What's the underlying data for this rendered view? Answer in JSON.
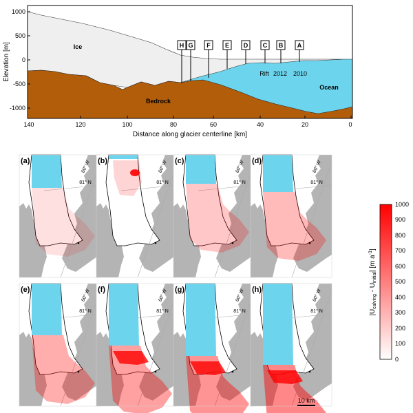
{
  "profile": {
    "y_label": "Elevation [m]",
    "x_label": "Distance along glacier centerline [km]",
    "y_ticks": [
      "1000",
      "500",
      "0",
      "-500",
      "-1000"
    ],
    "x_ticks": [
      "140",
      "120",
      "100",
      "80",
      "60",
      "40",
      "20",
      "0"
    ],
    "labels": {
      "ice": "Ice",
      "bedrock": "Bedrock",
      "ocean": "Ocean",
      "rift": "Rift",
      "y2012": "2012",
      "y2010": "2010"
    },
    "markers": [
      "H",
      "G",
      "F",
      "E",
      "D",
      "C",
      "B",
      "A"
    ]
  },
  "panels": [
    {
      "label": "(a)",
      "lon": "60° W",
      "lat": "81° N"
    },
    {
      "label": "(b)",
      "lon": "60° W",
      "lat": "81° N"
    },
    {
      "label": "(c)",
      "lon": "60° W",
      "lat": "81° N"
    },
    {
      "label": "(d)",
      "lon": "60° W",
      "lat": "81° N"
    },
    {
      "label": "(e)",
      "lon": "60° W",
      "lat": "81° N"
    },
    {
      "label": "(f)",
      "lon": "60° W",
      "lat": "81° N"
    },
    {
      "label": "(g)",
      "lon": "60° W",
      "lat": "81° N"
    },
    {
      "label": "(h)",
      "lon": "60° W",
      "lat": "81° N"
    }
  ],
  "colorbar": {
    "ticks": [
      "1000",
      "900",
      "800",
      "700",
      "600",
      "500",
      "400",
      "300",
      "200",
      "100",
      "0"
    ],
    "label_1": "|U",
    "sub_1": "calving",
    "label_2": " - U",
    "sub_2": "initial",
    "label_3": "| [m a",
    "sup": "-1",
    "label_4": "]"
  },
  "scalebar": "10 km",
  "colors": {
    "ice": "#efefef",
    "bedrock": "#b25d0a",
    "ocean": "#6dd4ed",
    "land": "#b4b4b4",
    "change_max": "#ff0000"
  }
}
